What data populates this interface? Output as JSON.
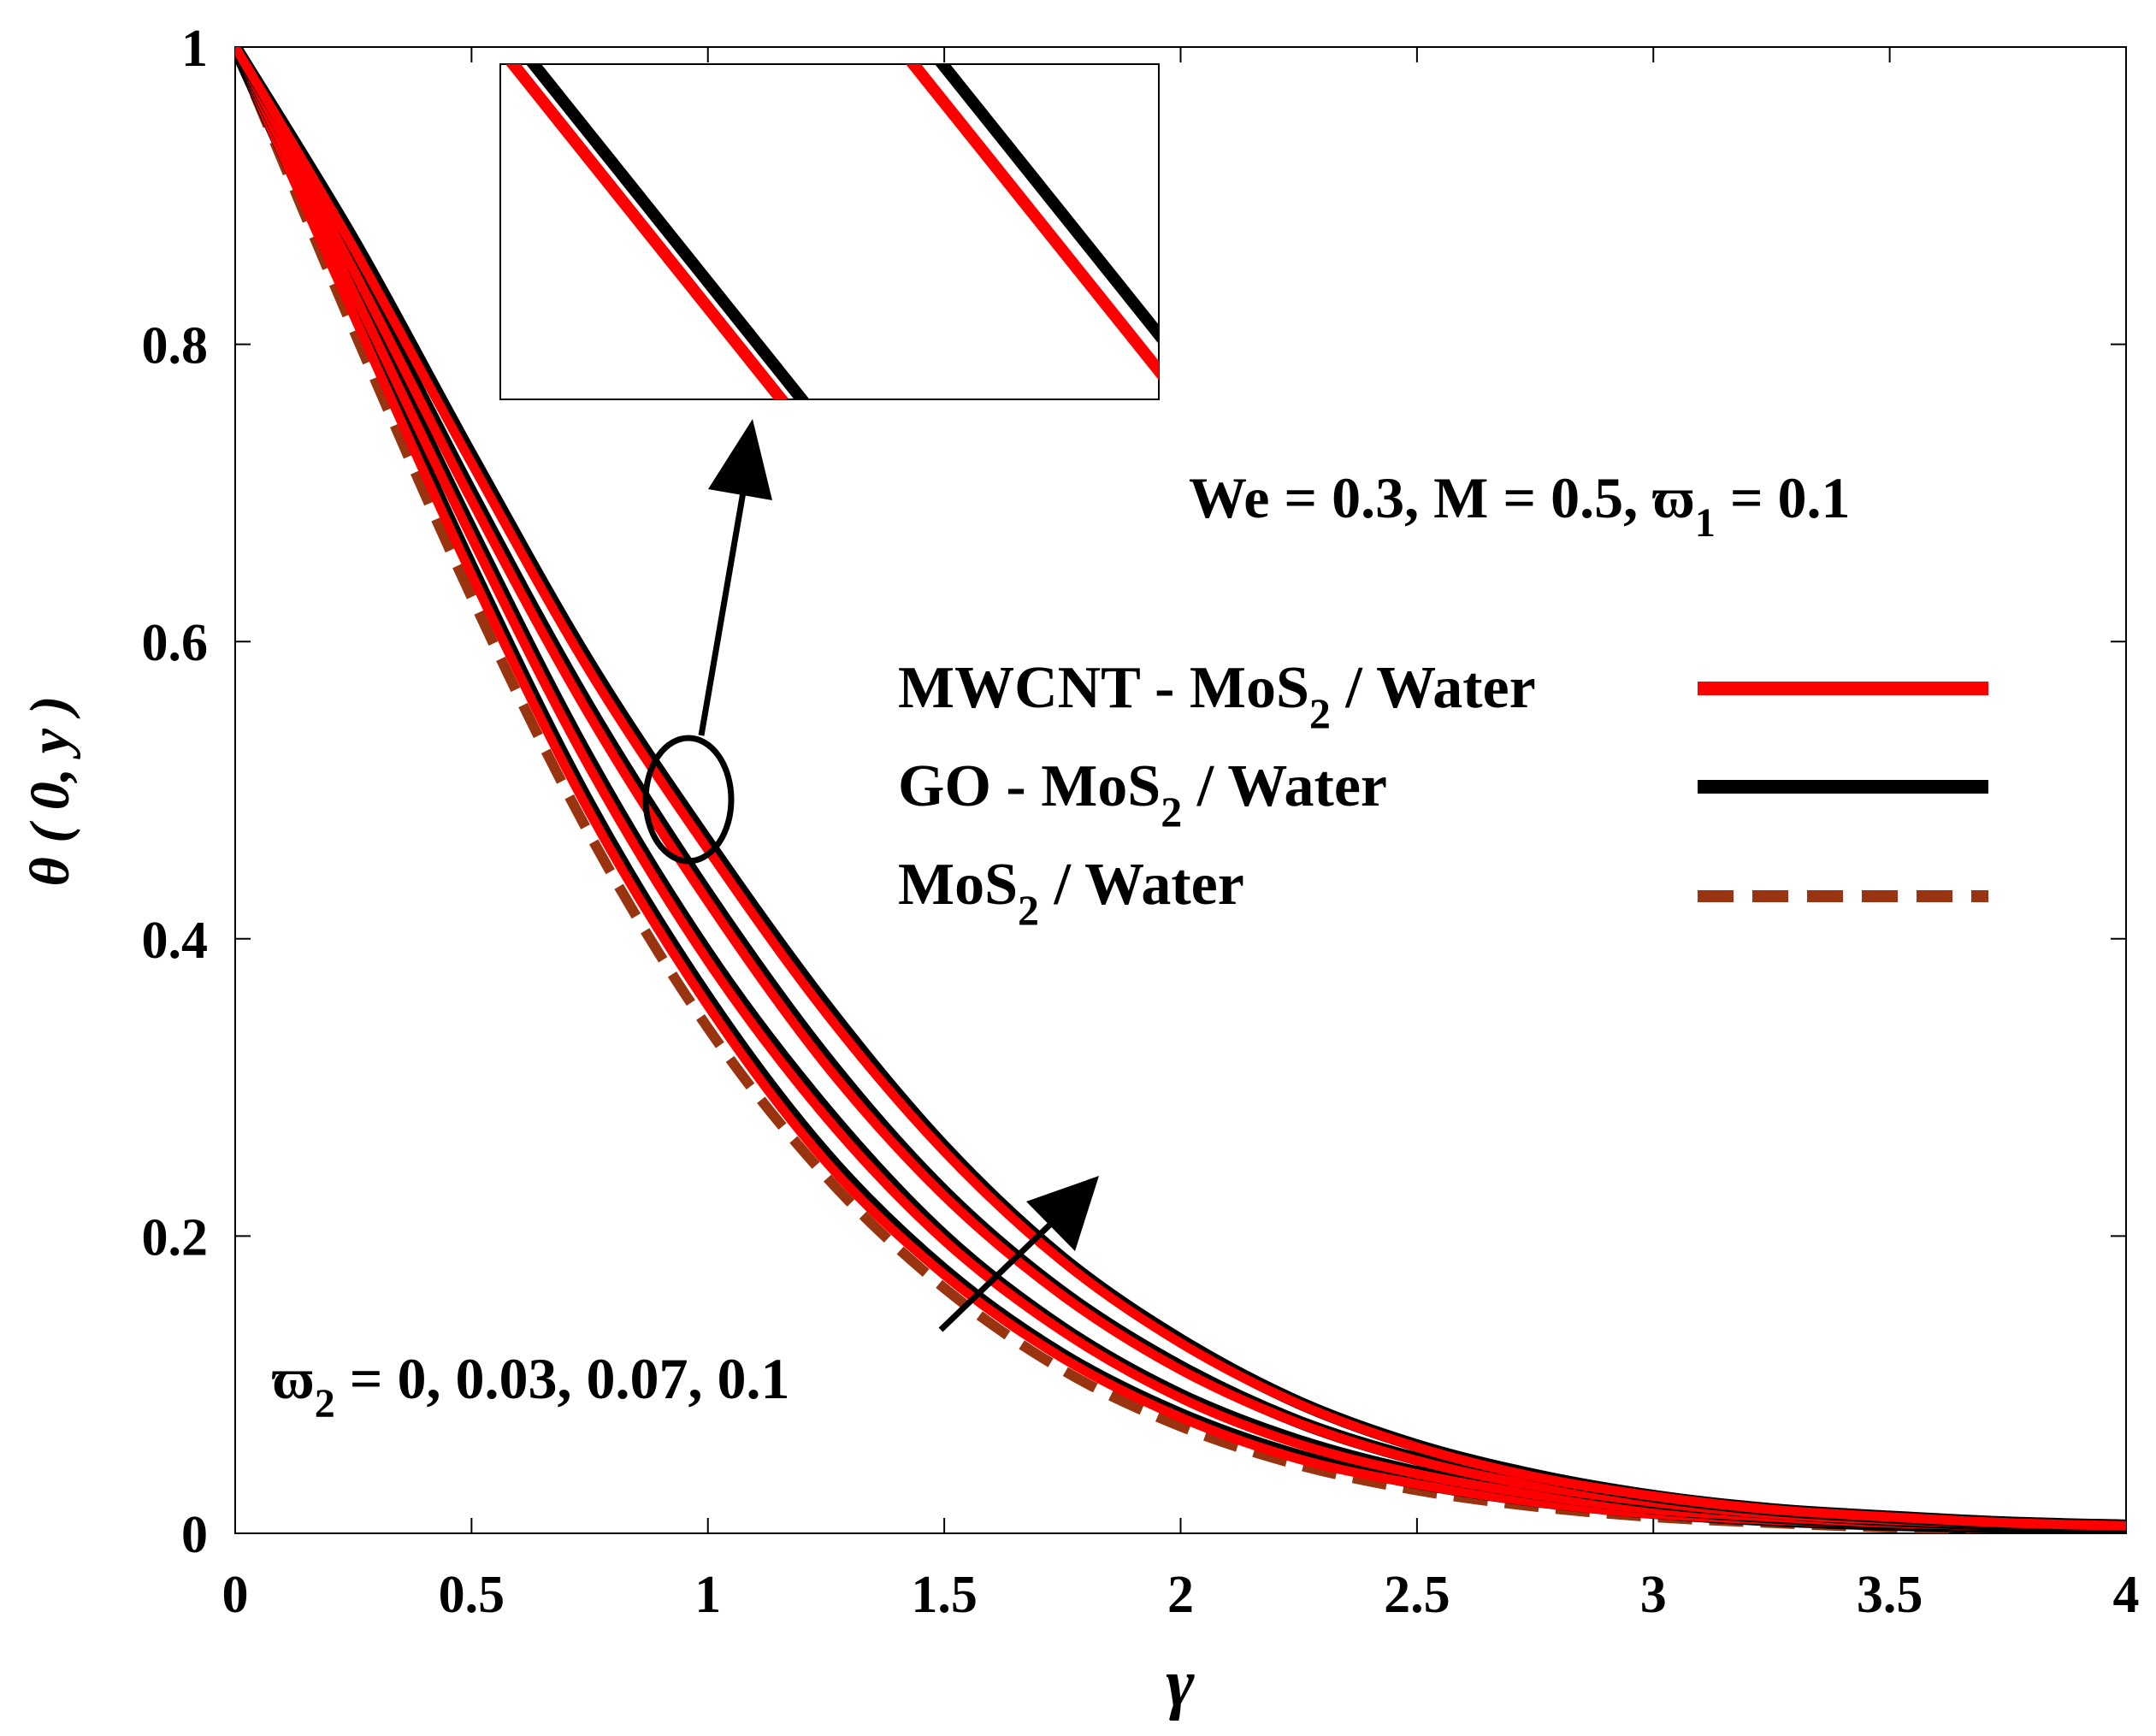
{
  "chart_data": {
    "type": "line",
    "title": "",
    "xlabel": "γ",
    "ylabel": "θ ( 0, y )",
    "xlim": [
      0,
      4
    ],
    "ylim": [
      0,
      1
    ],
    "xticks": [
      0,
      0.5,
      1,
      1.5,
      2,
      2.5,
      3,
      3.5,
      4
    ],
    "xtick_labels": [
      "0",
      "0.5",
      "1",
      "1.5",
      "2",
      "2.5",
      "3",
      "3.5",
      "4"
    ],
    "yticks": [
      0,
      0.2,
      0.4,
      0.6,
      0.8,
      1
    ],
    "ytick_labels": [
      "0",
      "0.2",
      "0.4",
      "0.6",
      "0.8",
      "1"
    ],
    "x": [
      0,
      0.25,
      0.5,
      0.75,
      1,
      1.25,
      1.5,
      1.75,
      2,
      2.25,
      2.5,
      2.75,
      3,
      3.25,
      3.5,
      3.75,
      4
    ],
    "series": [
      {
        "name": "MoS2 / Water",
        "style": "dashed",
        "color": "#993310",
        "values": [
          1,
          0.81,
          0.63,
          0.47,
          0.34,
          0.24,
          0.165,
          0.11,
          0.072,
          0.046,
          0.029,
          0.018,
          0.011,
          0.007,
          0.004,
          0.003,
          0.002
        ]
      },
      {
        "name": "GO - MoS2 / Water ϖ2=0",
        "style": "solid",
        "color": "#000000",
        "values": [
          1,
          0.825,
          0.65,
          0.49,
          0.36,
          0.255,
          0.177,
          0.12,
          0.08,
          0.052,
          0.034,
          0.022,
          0.014,
          0.009,
          0.006,
          0.004,
          0.003
        ]
      },
      {
        "name": "MWCNT - MoS2 / Water ϖ2=0",
        "style": "solid",
        "color": "#ff0000",
        "values": [
          1,
          0.82,
          0.645,
          0.485,
          0.355,
          0.25,
          0.174,
          0.118,
          0.078,
          0.05,
          0.033,
          0.021,
          0.013,
          0.009,
          0.006,
          0.004,
          0.003
        ]
      },
      {
        "name": "GO - MoS2 / Water ϖ2=0.03",
        "style": "solid",
        "color": "#000000",
        "values": [
          1,
          0.84,
          0.675,
          0.52,
          0.39,
          0.285,
          0.2,
          0.138,
          0.093,
          0.062,
          0.041,
          0.027,
          0.017,
          0.011,
          0.007,
          0.005,
          0.003
        ]
      },
      {
        "name": "MWCNT - MoS2 / Water ϖ2=0.03",
        "style": "solid",
        "color": "#ff0000",
        "values": [
          1,
          0.835,
          0.67,
          0.515,
          0.385,
          0.28,
          0.197,
          0.136,
          0.091,
          0.06,
          0.04,
          0.026,
          0.016,
          0.011,
          0.007,
          0.005,
          0.003
        ]
      },
      {
        "name": "GO - MoS2 / Water ϖ2=0.07",
        "style": "solid",
        "color": "#000000",
        "values": [
          1,
          0.855,
          0.7,
          0.555,
          0.43,
          0.32,
          0.23,
          0.162,
          0.112,
          0.075,
          0.05,
          0.033,
          0.021,
          0.014,
          0.009,
          0.006,
          0.004
        ]
      },
      {
        "name": "MWCNT - MoS2 / Water ϖ2=0.07",
        "style": "solid",
        "color": "#ff0000",
        "values": [
          1,
          0.85,
          0.695,
          0.55,
          0.425,
          0.315,
          0.227,
          0.16,
          0.11,
          0.074,
          0.049,
          0.032,
          0.021,
          0.013,
          0.009,
          0.006,
          0.004
        ]
      },
      {
        "name": "GO - MoS2 / Water ϖ2=0.1",
        "style": "solid",
        "color": "#000000",
        "values": [
          1,
          0.87,
          0.725,
          0.585,
          0.465,
          0.355,
          0.26,
          0.185,
          0.13,
          0.088,
          0.059,
          0.039,
          0.025,
          0.016,
          0.011,
          0.007,
          0.005
        ]
      },
      {
        "name": "MWCNT - MoS2 / Water ϖ2=0.1",
        "style": "solid",
        "color": "#ff0000",
        "values": [
          1,
          0.865,
          0.72,
          0.58,
          0.46,
          0.35,
          0.257,
          0.183,
          0.128,
          0.087,
          0.058,
          0.038,
          0.025,
          0.016,
          0.011,
          0.007,
          0.005
        ]
      }
    ],
    "legend": {
      "placement": "right",
      "entries": [
        {
          "pre": "MWCNT - MoS",
          "sub": "2",
          "post": " / Water",
          "color": "#ff0000",
          "style": "solid"
        },
        {
          "pre": "GO - MoS",
          "sub": "2",
          "post": " / Water",
          "color": "#000000",
          "style": "solid"
        },
        {
          "pre": "MoS",
          "sub": "2",
          "post": " / Water",
          "color": "#993310",
          "style": "dashed"
        }
      ]
    },
    "annotations": {
      "params": {
        "pre": "We = 0.3, M = 0.5, ϖ",
        "sub": "1",
        "post": " = 0.1"
      },
      "omega2": {
        "pre": "ϖ",
        "sub": "2",
        "post": " = 0, 0.03, 0.07, 0.1"
      },
      "omega2_arrow": "increasing ϖ2",
      "zoom_inset": "magnified view near γ ≈ 1"
    }
  }
}
